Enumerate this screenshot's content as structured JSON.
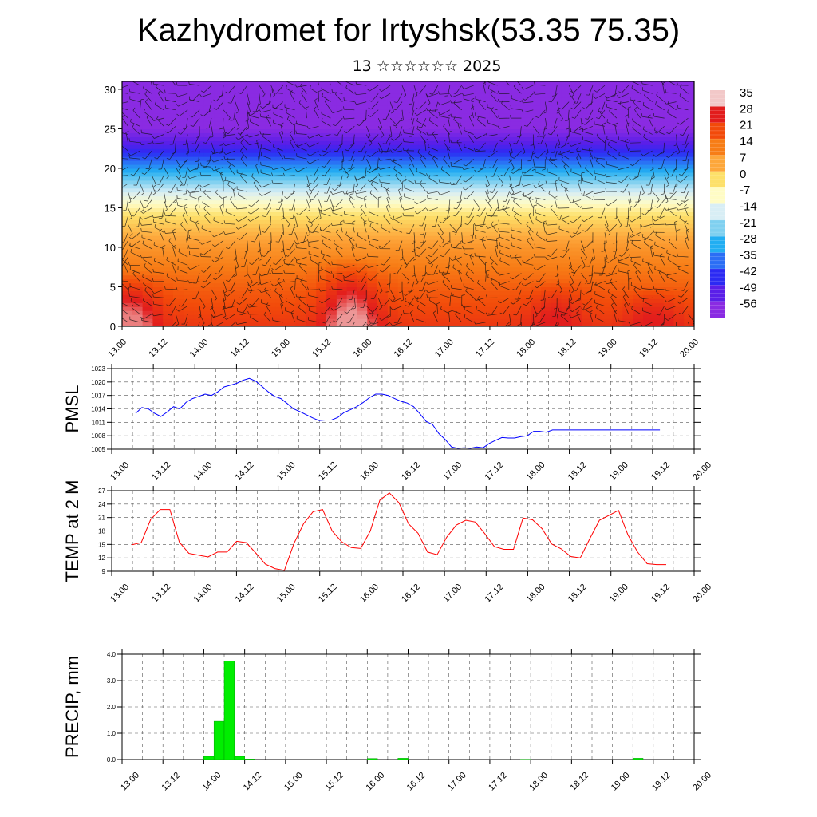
{
  "header": {
    "title": "Kazhydromet for Irtyshsk(53.35 75.35)",
    "subtitle": "13 ☆☆☆☆☆☆ 2025"
  },
  "x_tick_labels": [
    "13.00",
    "13.12",
    "14.00",
    "14.12",
    "15.00",
    "15.12",
    "16.00",
    "16.12",
    "17.00",
    "17.12",
    "18.00",
    "18.12",
    "19.00",
    "19.12",
    "20.00"
  ],
  "chart_data": [
    {
      "type": "heatmap",
      "title": "",
      "xlabel": "",
      "ylabel": "",
      "ylim": [
        0,
        31
      ],
      "y_ticks": [
        0,
        5,
        10,
        15,
        20,
        25,
        30
      ],
      "colorbar": {
        "labels": [
          "35",
          "28",
          "21",
          "14",
          "7",
          "0",
          "-7",
          "-14",
          "-21",
          "-28",
          "-35",
          "-42",
          "-49",
          "-56"
        ],
        "colors": [
          "#f2c8c8",
          "#e21d1d",
          "#f24a0a",
          "#f77d16",
          "#fda73b",
          "#fde06a",
          "#fffcc5",
          "#d8eef5",
          "#7fd0f0",
          "#22aef2",
          "#2b6ef5",
          "#2b2af3",
          "#5a1fe8",
          "#8a2be2"
        ]
      },
      "temperature_profile": [
        {
          "alt": 0,
          "value": 24
        },
        {
          "alt": 5,
          "value": 18
        },
        {
          "alt": 10,
          "value": 10
        },
        {
          "alt": 14,
          "value": 0
        },
        {
          "alt": 17,
          "value": -14
        },
        {
          "alt": 20,
          "value": -30
        },
        {
          "alt": 23,
          "value": -48
        },
        {
          "alt": 25,
          "value": -56
        },
        {
          "alt": 28,
          "value": -58
        },
        {
          "alt": 31,
          "value": -58
        }
      ],
      "warm_cores": [
        {
          "time": 13.1,
          "alt_top": 7,
          "value": 32
        },
        {
          "time": 15.8,
          "alt_top": 9,
          "value": 33
        },
        {
          "time": 18.3,
          "alt_top": 6,
          "value": 28
        },
        {
          "time": 19.5,
          "alt_top": 5,
          "value": 28
        }
      ]
    },
    {
      "type": "line",
      "name": "PMSL",
      "ylabel": "PMSL",
      "ylim": [
        1005,
        1023
      ],
      "y_ticks": [
        1005,
        1008,
        1011,
        1014,
        1017,
        1020,
        1023
      ],
      "color": "#0000ff",
      "x": [
        13.0,
        13.083,
        13.167,
        13.25,
        13.333,
        13.417,
        13.5,
        13.583,
        13.667,
        13.75,
        13.833,
        13.917,
        14.0,
        14.083,
        14.167,
        14.25,
        14.333,
        14.417,
        14.5,
        14.583,
        14.667,
        14.75,
        14.833,
        14.917,
        15.0,
        15.083,
        15.167,
        15.25,
        15.333,
        15.417,
        15.5,
        15.583,
        15.667,
        15.75,
        15.833,
        15.917,
        16.0,
        16.083,
        16.167,
        16.25,
        16.333,
        16.417,
        16.5,
        16.583,
        16.667,
        16.75,
        16.833,
        16.917,
        17.0,
        17.083,
        17.167,
        17.25,
        17.333,
        17.417,
        17.5,
        17.583,
        17.667,
        17.75,
        17.833,
        17.917,
        18.0,
        18.083,
        18.167,
        18.25,
        18.333,
        18.417,
        18.5,
        18.583,
        18.667,
        18.75,
        18.833,
        18.917,
        19.0,
        19.083,
        19.167,
        19.25,
        19.333,
        19.417,
        19.5,
        19.583,
        19.667,
        19.75,
        19.833,
        19.917
      ],
      "values": [
        1013,
        1014.3,
        1014,
        1013,
        1012.3,
        1013.3,
        1014.5,
        1014,
        1015.5,
        1016.3,
        1016.8,
        1017.3,
        1017,
        1017.8,
        1018.9,
        1019.3,
        1019.7,
        1020.4,
        1020.8,
        1020.2,
        1019,
        1017.8,
        1016.8,
        1016.3,
        1015.2,
        1014,
        1013.4,
        1012.7,
        1012,
        1011.4,
        1011.5,
        1011.5,
        1012.1,
        1013.2,
        1013.8,
        1014.5,
        1015.4,
        1016.5,
        1017.3,
        1017.3,
        1017,
        1016.3,
        1015.7,
        1015.3,
        1014.5,
        1012.9,
        1011.2,
        1010.5,
        1008.5,
        1007.2,
        1005.5,
        1005.2,
        1005.3,
        1005.2,
        1005.5,
        1005.3,
        1006.3,
        1007,
        1007.6,
        1007.5,
        1007.5,
        1007.8,
        1008,
        1009,
        1009,
        1008.8,
        1009.3,
        1009.3,
        1009.3,
        1009.3,
        1009.3,
        1009.3,
        1009.3,
        1009.3,
        1009.3,
        1009.3,
        1009.3,
        1009.3,
        1009.3,
        1009.3,
        1009.3,
        1009.3,
        1009.3,
        1009.3
      ]
    },
    {
      "type": "line",
      "name": "TEMP at 2 M",
      "ylabel": "TEMP at 2 M",
      "ylim": [
        9,
        27
      ],
      "y_ticks": [
        9,
        12,
        15,
        18,
        21,
        24,
        27
      ],
      "color": "#ff0000",
      "x": [
        13.0,
        13.125,
        13.25,
        13.375,
        13.5,
        13.625,
        13.75,
        13.875,
        14.0,
        14.125,
        14.25,
        14.375,
        14.5,
        14.625,
        14.75,
        14.875,
        15.0,
        15.125,
        15.25,
        15.375,
        15.5,
        15.625,
        15.75,
        15.875,
        16.0,
        16.125,
        16.25,
        16.375,
        16.5,
        16.625,
        16.75,
        16.875,
        17.0,
        17.125,
        17.25,
        17.375,
        17.5,
        17.625,
        17.75,
        17.875,
        18.0,
        18.125,
        18.25,
        18.375,
        18.5,
        18.625,
        18.75,
        18.875,
        19.0,
        19.125,
        19.25,
        19.375,
        19.5,
        19.625,
        19.75,
        19.875,
        20.0
      ],
      "values": [
        14.9,
        15.4,
        20.6,
        22.8,
        22.8,
        15.5,
        13,
        12.6,
        12.2,
        13.3,
        13.3,
        15.7,
        15.4,
        13.1,
        10.6,
        9.6,
        9.2,
        15.2,
        19.6,
        22.3,
        22.8,
        18,
        15.6,
        14.3,
        14.1,
        18,
        24.9,
        26.5,
        24.3,
        19.6,
        17.5,
        13.3,
        12.7,
        16.6,
        19.3,
        20.4,
        20,
        17.4,
        14.5,
        13.9,
        13.9,
        20.9,
        20.5,
        18.5,
        15.1,
        14,
        12.3,
        12,
        16.3,
        20.4,
        21.5,
        22.6,
        17.1,
        13.3,
        10.7,
        10.5,
        10.5
      ]
    },
    {
      "type": "bar",
      "name": "PRECIP, mm",
      "ylabel": "PRECIP, mm",
      "ylim": [
        0,
        4
      ],
      "y_ticks": [
        0,
        1,
        2,
        3,
        4
      ],
      "y_tick_labels": [
        "0.0",
        "1.0",
        "2.0",
        "3.0",
        "4.0"
      ],
      "color": "#00ee00",
      "x": [
        13.0,
        13.125,
        13.25,
        13.375,
        13.5,
        13.625,
        13.75,
        13.875,
        14.0,
        14.125,
        14.25,
        14.375,
        14.5,
        14.625,
        14.75,
        14.875,
        15.0,
        15.125,
        15.25,
        15.375,
        15.5,
        15.625,
        15.75,
        15.875,
        16.0,
        16.125,
        16.25,
        16.375,
        16.5,
        16.625,
        16.75,
        16.875,
        17.0,
        17.125,
        17.25,
        17.375,
        17.5,
        17.625,
        17.75,
        17.875,
        18.0,
        18.125,
        18.25,
        18.375,
        18.5,
        18.625,
        18.75,
        18.875,
        19.0,
        19.125,
        19.25,
        19.375,
        19.5,
        19.625,
        19.75,
        19.875
      ],
      "values": [
        0,
        0,
        0,
        0,
        0,
        0,
        0,
        0,
        0.12,
        1.45,
        3.75,
        0.12,
        0.02,
        0,
        0,
        0,
        0,
        0,
        0,
        0,
        0,
        0,
        0,
        0,
        0.04,
        0,
        0,
        0.05,
        0,
        0,
        0,
        0,
        0,
        0,
        0,
        0,
        0,
        0,
        0,
        0.01,
        0,
        0,
        0,
        0,
        0,
        0,
        0,
        0,
        0,
        0,
        0.05,
        0,
        0,
        0,
        0,
        0
      ]
    }
  ]
}
